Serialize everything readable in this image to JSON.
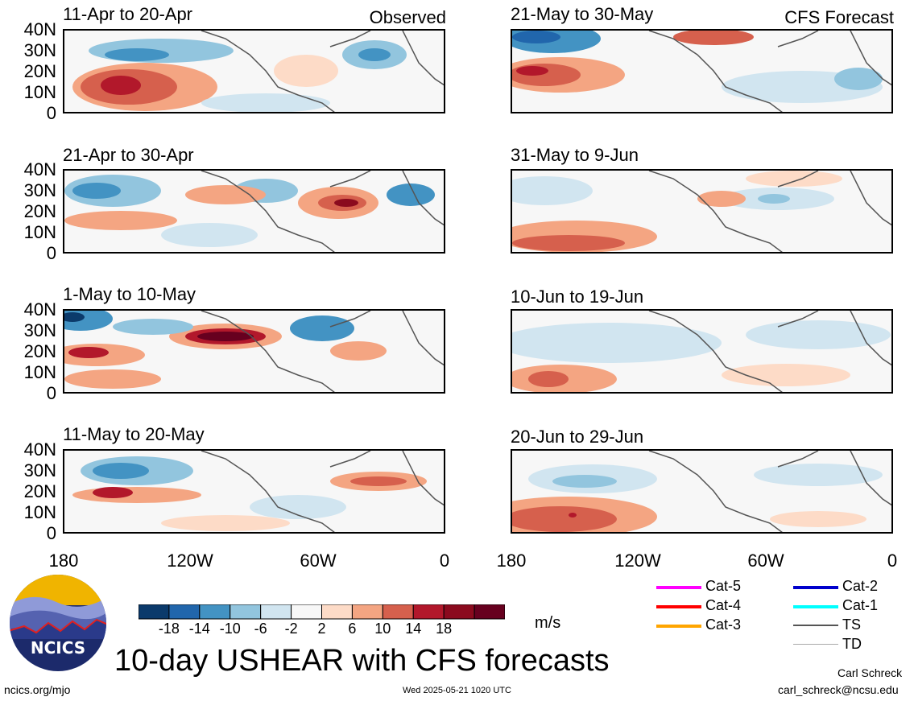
{
  "observed_label": "Observed",
  "forecast_label": "CFS Forecast",
  "panels_left": [
    {
      "title": "11-Apr to 20-Apr"
    },
    {
      "title": "21-Apr to 30-Apr"
    },
    {
      "title": "1-May to 10-May"
    },
    {
      "title": "11-May to 20-May"
    }
  ],
  "panels_right": [
    {
      "title": "21-May to 30-May"
    },
    {
      "title": "31-May to 9-Jun"
    },
    {
      "title": "10-Jun to 19-Jun"
    },
    {
      "title": "20-Jun to 29-Jun"
    }
  ],
  "lat_ticks": [
    "40N",
    "30N",
    "20N",
    "10N",
    "0"
  ],
  "lon_ticks": [
    "180",
    "120W",
    "60W",
    "0"
  ],
  "colorbar": {
    "colors": [
      "#0b3a6b",
      "#2166ac",
      "#4393c3",
      "#92c5de",
      "#d1e5f0",
      "#f7f7f7",
      "#fddbc7",
      "#f4a582",
      "#d6604d",
      "#b2182b",
      "#8b0a1e",
      "#67001f"
    ],
    "labels": [
      "-18",
      "-14",
      "-10",
      "-6",
      "-2",
      "2",
      "6",
      "10",
      "14",
      "18"
    ],
    "units": "m/s"
  },
  "track_legend": [
    {
      "label": "Cat-5",
      "color": "#ff00ff"
    },
    {
      "label": "Cat-4",
      "color": "#ff0000"
    },
    {
      "label": "Cat-3",
      "color": "#ffa500"
    },
    {
      "label": "Cat-2",
      "color": "#0000cc"
    },
    {
      "label": "Cat-1",
      "color": "#00ffff"
    },
    {
      "label": "TS",
      "color": "#555555"
    },
    {
      "label": "TD",
      "color": "#aaaaaa"
    }
  ],
  "main_title": "10-day USHEAR with CFS forecasts",
  "logo_text": "NCICS",
  "footer_left": "ncics.org/mjo",
  "footer_center": "Wed 2025-05-21 1020 UTC",
  "author": "Carl Schreck",
  "email": "carl_schreck@ncsu.edu"
}
